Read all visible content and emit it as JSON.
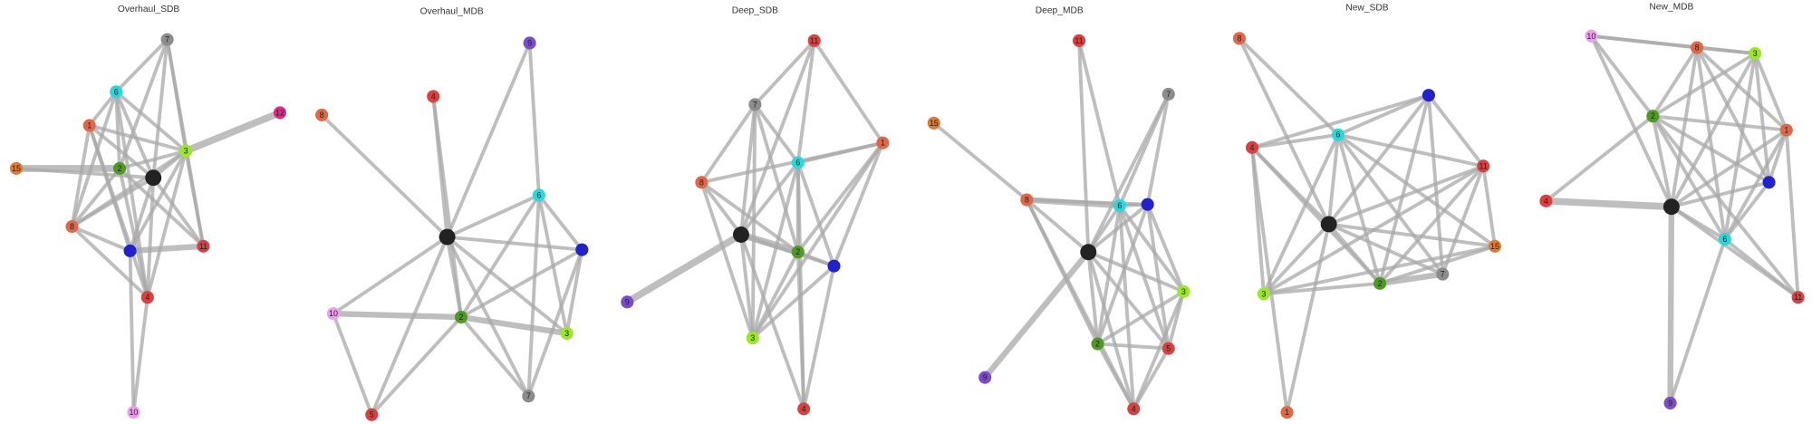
{
  "panels": [
    {
      "title": "Overhaul_SDB",
      "nodes": [
        "7",
        "6",
        "1",
        "12",
        "3",
        "15",
        "2",
        "8",
        "11",
        "4",
        "10"
      ]
    },
    {
      "title": "Overhaul_MDB",
      "nodes": [
        "9",
        "4",
        "8",
        "6",
        "10",
        "2",
        "3",
        "7",
        "5"
      ]
    },
    {
      "title": "Deep_SDB",
      "nodes": [
        "11",
        "7",
        "1",
        "6",
        "8",
        "2",
        "9",
        "3",
        "4"
      ]
    },
    {
      "title": "Deep_MDB",
      "nodes": [
        "11",
        "7",
        "15",
        "8",
        "6",
        "3",
        "2",
        "5",
        "9",
        "4"
      ]
    },
    {
      "title": "New_SDB",
      "nodes": [
        "8",
        "6",
        "4",
        "11",
        "15",
        "7",
        "2",
        "3",
        "1"
      ]
    },
    {
      "title": "New_MDB",
      "nodes": [
        "10",
        "8",
        "3",
        "2",
        "1",
        "4",
        "6",
        "11",
        "9"
      ]
    }
  ]
}
